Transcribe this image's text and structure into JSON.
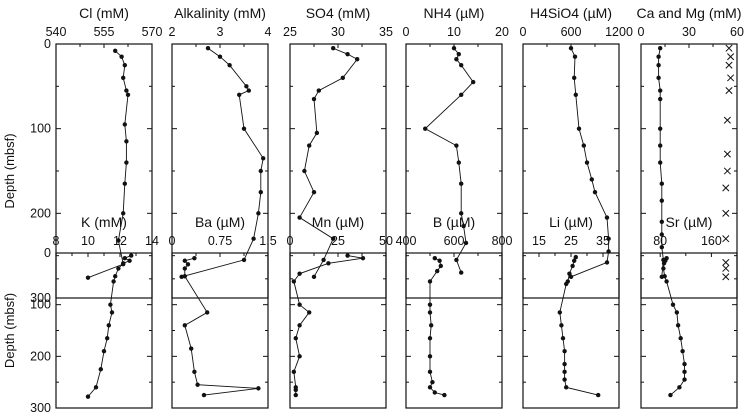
{
  "y_axis_label": "Depth (mbsf)",
  "y_ticks": [
    "0",
    "100",
    "200",
    "300"
  ],
  "chart_data": [
    {
      "type": "line",
      "title": "Cl (mM)",
      "xticks": [
        "540",
        "555",
        "570"
      ],
      "xlim": [
        540,
        570
      ],
      "ylim": [
        0,
        300
      ],
      "ylabel": "Depth (mbsf)",
      "series": [
        {
          "x": [
            558.5,
            560.5,
            561.5,
            561.0,
            562.0,
            562.5,
            561.5,
            562.0,
            562.0,
            561.5,
            561.0,
            559.5,
            561.0,
            550.0
          ],
          "y": [
            8,
            15,
            25,
            40,
            55,
            60,
            95,
            115,
            140,
            165,
            200,
            232,
            260,
            276
          ]
        }
      ]
    },
    {
      "type": "line",
      "title": "Alkalinity (mM)",
      "xticks": [
        "2",
        "3",
        "4"
      ],
      "xlim": [
        2,
        4
      ],
      "ylim": [
        0,
        300
      ],
      "ylabel": "",
      "series": [
        {
          "x": [
            2.75,
            3.0,
            3.2,
            3.55,
            3.6,
            3.4,
            3.5,
            3.9,
            3.85,
            3.85,
            3.8,
            3.7,
            3.5,
            2.2
          ],
          "y": [
            5,
            15,
            25,
            50,
            55,
            60,
            100,
            135,
            150,
            175,
            200,
            230,
            255,
            275
          ]
        }
      ]
    },
    {
      "type": "line",
      "title": "SO4 (mM)",
      "xticks": [
        "25",
        "30",
        "35"
      ],
      "xlim": [
        25,
        35
      ],
      "ylim": [
        0,
        300
      ],
      "ylabel": "",
      "series": [
        {
          "x": [
            29.5,
            31.0,
            32.0,
            30.5,
            28.0,
            27.5,
            27.8,
            27.0,
            26.5,
            27.5,
            26.0,
            29.5,
            28.5,
            27.5
          ],
          "y": [
            5,
            12,
            18,
            40,
            55,
            65,
            105,
            120,
            150,
            175,
            205,
            230,
            255,
            275
          ]
        }
      ]
    },
    {
      "type": "line",
      "title": "NH4 (µM)",
      "xticks": [
        "0",
        "10",
        "20"
      ],
      "xlim": [
        0,
        20
      ],
      "ylim": [
        0,
        300
      ],
      "ylabel": "",
      "series": [
        {
          "x": [
            10.0,
            11.0,
            10.5,
            11.5,
            14.0,
            11.5,
            4.0,
            10.5,
            11.0,
            11.5,
            11.5,
            12.0,
            12.5,
            10.5,
            11.5
          ],
          "y": [
            5,
            12,
            18,
            25,
            45,
            60,
            100,
            120,
            140,
            165,
            200,
            215,
            235,
            255,
            270
          ]
        }
      ]
    },
    {
      "type": "line",
      "title": "H4SiO4 (µM)",
      "xticks": [
        "0",
        "600",
        "1200"
      ],
      "xlim": [
        0,
        1200
      ],
      "ylim": [
        0,
        300
      ],
      "ylabel": "",
      "series": [
        {
          "x": [
            600,
            650,
            640,
            660,
            700,
            760,
            800,
            860,
            900,
            1050,
            1070,
            1070,
            1050,
            600
          ],
          "y": [
            5,
            15,
            40,
            60,
            100,
            120,
            140,
            160,
            175,
            205,
            230,
            245,
            258,
            275
          ]
        }
      ]
    },
    {
      "type": "line",
      "title": "Ca and Mg (mM)",
      "xticks": [
        "0",
        "30",
        "60"
      ],
      "xlim": [
        0,
        60
      ],
      "ylim": [
        0,
        300
      ],
      "ylabel": "",
      "series": [
        {
          "name": "Ca",
          "marker": "dot",
          "x": [
            12,
            11,
            11,
            11,
            12,
            12,
            12,
            12,
            12,
            13,
            13,
            13,
            13,
            13,
            14,
            13
          ],
          "y": [
            5,
            15,
            25,
            40,
            55,
            65,
            100,
            120,
            140,
            165,
            185,
            210,
            225,
            240,
            255,
            275
          ]
        },
        {
          "name": "Mg",
          "marker": "x",
          "x": [
            55,
            56,
            55,
            56,
            55,
            54,
            54,
            54,
            53,
            53,
            53,
            53,
            53,
            53
          ],
          "y": [
            5,
            15,
            25,
            40,
            55,
            90,
            130,
            150,
            170,
            200,
            230,
            258,
            265,
            275
          ]
        }
      ]
    },
    {
      "type": "line",
      "title": "K (mM)",
      "xticks": [
        "8",
        "10",
        "12",
        "14"
      ],
      "xlim": [
        8,
        14
      ],
      "ylim": [
        0,
        300
      ],
      "ylabel": "Depth (mbsf)",
      "series": [
        {
          "x": [
            12.7,
            12.3,
            12.6,
            12.2,
            11.9,
            11.7,
            11.6,
            11.4,
            11.5,
            11.3,
            11.2,
            11.0,
            10.8,
            10.5,
            10.0
          ],
          "y": [
            5,
            10,
            15,
            20,
            30,
            45,
            55,
            100,
            115,
            140,
            165,
            190,
            225,
            260,
            278
          ]
        }
      ]
    },
    {
      "type": "line",
      "title": "Ba (µM)",
      "xticks": [
        "0",
        "0.75",
        "1.5"
      ],
      "xlim": [
        0,
        1.5
      ],
      "ylim": [
        0,
        300
      ],
      "ylabel": "",
      "series": [
        {
          "x": [
            0.35,
            0.2,
            0.25,
            0.2,
            0.2,
            0.55,
            0.2,
            0.3,
            0.35,
            0.4,
            1.35,
            0.5
          ],
          "y": [
            10,
            15,
            22,
            30,
            45,
            115,
            140,
            185,
            230,
            255,
            262,
            275
          ]
        }
      ]
    },
    {
      "type": "line",
      "title": "Mn (µM)",
      "xticks": [
        "0",
        "25",
        "50"
      ],
      "xlim": [
        0,
        50
      ],
      "ylim": [
        0,
        300
      ],
      "ylabel": "",
      "series": [
        {
          "x": [
            30,
            38,
            20,
            5,
            2,
            5,
            10,
            5,
            3,
            5,
            2,
            3,
            3,
            3
          ],
          "y": [
            5,
            10,
            20,
            40,
            55,
            100,
            115,
            140,
            165,
            200,
            230,
            260,
            265,
            275
          ]
        }
      ]
    },
    {
      "type": "line",
      "title": "B (µM)",
      "xticks": [
        "400",
        "600",
        "800"
      ],
      "xlim": [
        400,
        800
      ],
      "ylim": [
        0,
        300
      ],
      "ylabel": "",
      "series": [
        {
          "x": [
            520,
            540,
            545,
            530,
            500,
            500,
            500,
            505,
            500,
            500,
            500,
            510,
            500,
            520,
            560
          ],
          "y": [
            10,
            15,
            25,
            35,
            55,
            100,
            115,
            140,
            165,
            200,
            230,
            250,
            260,
            270,
            275
          ]
        }
      ]
    },
    {
      "type": "line",
      "title": "Li (µM)",
      "xticks": [
        "15",
        "25",
        "35"
      ],
      "xlim": [
        10,
        40
      ],
      "ylim": [
        0,
        300
      ],
      "ylabel": "",
      "series": [
        {
          "x": [
            26.5,
            26,
            25.5,
            24.5,
            24,
            23.5,
            21.5,
            22,
            22.5,
            23,
            23,
            23,
            23,
            23.5,
            33.5
          ],
          "y": [
            8,
            15,
            25,
            40,
            55,
            60,
            115,
            140,
            165,
            190,
            215,
            230,
            245,
            260,
            275
          ]
        }
      ]
    },
    {
      "type": "line",
      "title": "Sr (µM)",
      "xticks": [
        "80",
        "160"
      ],
      "xlim": [
        50,
        200
      ],
      "ylim": [
        0,
        300
      ],
      "ylabel": "",
      "series": [
        {
          "x": [
            90,
            88,
            86,
            85,
            87,
            90,
            100,
            106,
            108,
            112,
            115,
            118,
            118,
            118,
            110,
            96
          ],
          "y": [
            10,
            15,
            20,
            30,
            45,
            55,
            100,
            115,
            140,
            165,
            190,
            215,
            230,
            245,
            260,
            275
          ]
        }
      ]
    }
  ]
}
